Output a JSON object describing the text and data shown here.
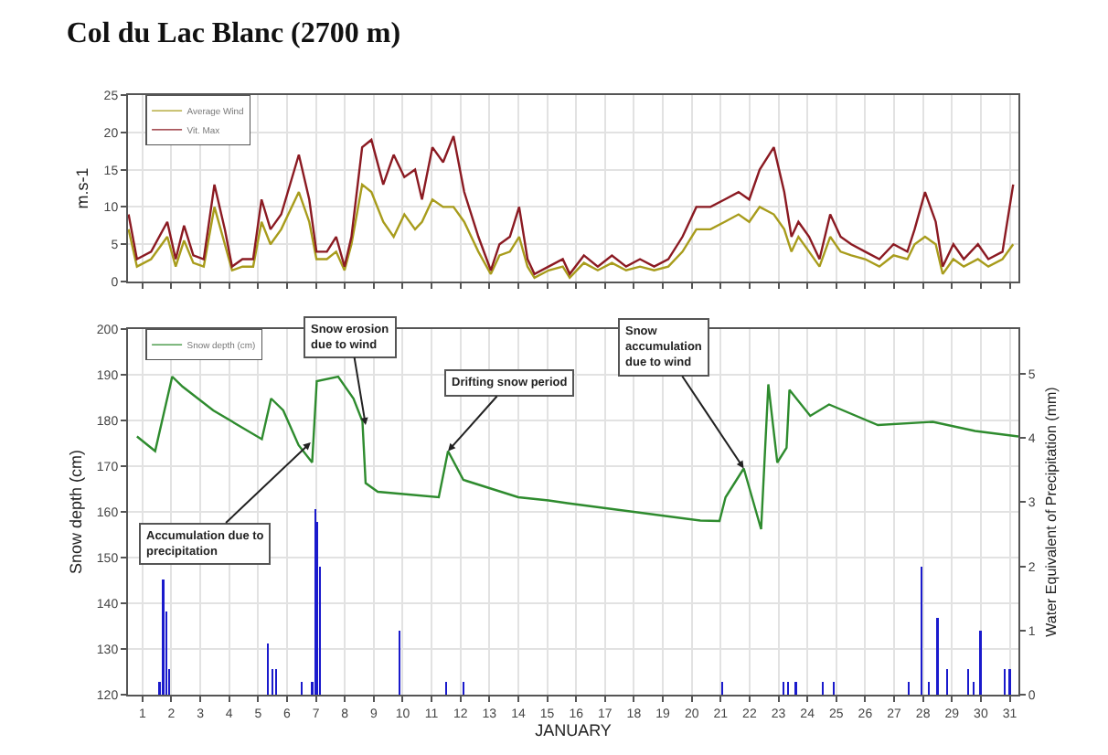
{
  "chart_data": [
    {
      "type": "line",
      "title": "Col du Lac Blanc (2700 m)",
      "ylabel": "m.s-1",
      "xlim": [
        0.5,
        31.3
      ],
      "xticks": [
        {
          "value": 1,
          "label": null
        },
        {
          "value": 2,
          "label": null
        },
        {
          "value": 3,
          "label": null
        },
        {
          "value": 4,
          "label": null
        },
        {
          "value": 5,
          "label": null
        },
        {
          "value": 6,
          "label": null
        },
        {
          "value": 7,
          "label": null
        },
        {
          "value": 8,
          "label": null
        },
        {
          "value": 9,
          "label": null
        },
        {
          "value": 10,
          "label": null
        },
        {
          "value": 11,
          "label": null
        },
        {
          "value": 12,
          "label": null
        },
        {
          "value": 13,
          "label": null
        },
        {
          "value": 14,
          "label": null
        },
        {
          "value": 15,
          "label": null
        },
        {
          "value": 16,
          "label": null
        },
        {
          "value": 17,
          "label": null
        },
        {
          "value": 18,
          "label": null
        },
        {
          "value": 19,
          "label": null
        },
        {
          "value": 20,
          "label": null
        },
        {
          "value": 21,
          "label": null
        },
        {
          "value": 22,
          "label": null
        },
        {
          "value": 23,
          "label": null
        },
        {
          "value": 24,
          "label": null
        },
        {
          "value": 25,
          "label": null
        },
        {
          "value": 26,
          "label": null
        },
        {
          "value": 27,
          "label": null
        },
        {
          "value": 28,
          "label": null
        },
        {
          "value": 29,
          "label": null
        },
        {
          "value": 30,
          "label": null
        },
        {
          "value": 31,
          "label": null
        }
      ],
      "ylim": [
        0,
        25
      ],
      "yticks": [
        0,
        5,
        10,
        15,
        20,
        25
      ],
      "grid": true,
      "legend": "top left",
      "tick_labels": "y",
      "x": [
        0.52,
        0.81,
        1.3,
        1.86,
        2.15,
        2.44,
        2.76,
        3.12,
        3.49,
        3.85,
        4.1,
        4.46,
        4.83,
        5.12,
        5.43,
        5.8,
        6.41,
        6.77,
        7.02,
        7.38,
        7.7,
        7.99,
        8.23,
        8.6,
        8.92,
        9.33,
        9.69,
        10.06,
        10.43,
        10.67,
        11.03,
        11.4,
        11.76,
        12.13,
        12.62,
        13.05,
        13.35,
        13.71,
        14.03,
        14.32,
        14.56,
        15.05,
        15.54,
        15.78,
        16.27,
        16.75,
        17.24,
        17.73,
        18.21,
        18.7,
        19.19,
        19.68,
        20.16,
        20.65,
        21.14,
        21.62,
        21.99,
        22.35,
        22.84,
        23.2,
        23.45,
        23.69,
        24.06,
        24.42,
        24.79,
        25.15,
        25.52,
        26.0,
        26.49,
        26.98,
        27.46,
        27.71,
        28.07,
        28.44,
        28.68,
        29.05,
        29.41,
        29.9,
        30.26,
        30.75,
        31.12
      ],
      "series": [
        {
          "name": "Average Wind",
          "color": "#a89c1c",
          "values": [
            7,
            2,
            3,
            6,
            2,
            5.5,
            2.5,
            2,
            10,
            5,
            1.5,
            2,
            2,
            8,
            5,
            7,
            12,
            8,
            3,
            3,
            4,
            1.5,
            5,
            13,
            12,
            8,
            6,
            9,
            7,
            8,
            11,
            10,
            10,
            8,
            4,
            1,
            3.5,
            4,
            6,
            2,
            0.5,
            1.5,
            2,
            0.5,
            2.5,
            1.5,
            2.5,
            1.5,
            2,
            1.5,
            2,
            4,
            7,
            7,
            8,
            9,
            8,
            10,
            9,
            7,
            4,
            6,
            4,
            2,
            6,
            4,
            3.5,
            3,
            2,
            3.5,
            3,
            5,
            6,
            5,
            1,
            3,
            2,
            3,
            2,
            3,
            5
          ]
        },
        {
          "name": "Vit. Max",
          "color": "#8b1a22",
          "values": [
            9,
            3,
            4,
            8,
            3,
            7.5,
            3.5,
            3,
            13,
            7,
            2,
            3,
            3,
            11,
            7,
            9,
            17,
            11,
            4,
            4,
            6,
            2,
            6,
            18,
            19,
            13,
            17,
            14,
            15,
            11,
            18,
            16,
            19.5,
            12,
            6,
            1.5,
            5,
            6,
            10,
            3,
            1,
            2,
            3,
            1,
            3.5,
            2,
            3.5,
            2,
            3,
            2,
            3,
            6,
            10,
            10,
            11,
            12,
            11,
            15,
            18,
            12,
            6,
            8,
            6,
            3,
            9,
            6,
            5,
            4,
            3,
            5,
            4,
            7,
            12,
            8,
            2,
            5,
            3,
            5,
            3,
            4,
            13
          ]
        }
      ]
    },
    {
      "type": "line",
      "xlabel": "JANUARY",
      "ylabel": "Snow depth (cm)",
      "y2label": "Water Equivalent of Precipitation (mm)",
      "xlim": [
        0.5,
        31.3
      ],
      "xticks": [
        1,
        2,
        3,
        4,
        5,
        6,
        7,
        8,
        9,
        10,
        11,
        12,
        13,
        14,
        15,
        16,
        17,
        18,
        19,
        20,
        21,
        22,
        23,
        24,
        25,
        26,
        27,
        28,
        29,
        30,
        31
      ],
      "ylim": [
        120,
        200
      ],
      "yticks": [
        120,
        130,
        140,
        150,
        160,
        170,
        180,
        190,
        200
      ],
      "y2lim": [
        0,
        5.7
      ],
      "y2ticks": [
        0,
        1,
        2,
        3,
        4,
        5
      ],
      "grid": true,
      "legend": "top left",
      "annotations": [
        {
          "text": "Accumulation due to\nprecipitation",
          "x": 6.82,
          "y": 175.2
        },
        {
          "text": "Snow erosion\ndue to wind",
          "x": 8.72,
          "y": 179
        },
        {
          "text": "Drifting snow period",
          "x": 11.57,
          "y": 173.3
        },
        {
          "text": "Snow\naccumulation\ndue to wind",
          "x": 21.8,
          "y": 169.5
        }
      ],
      "series": [
        {
          "name": "Snow depth (cm)",
          "color": "#2e8b2e",
          "x": [
            0.81,
            1.44,
            2.03,
            2.39,
            3.45,
            5.13,
            5.45,
            5.87,
            6.4,
            6.87,
            7.03,
            7.77,
            8.3,
            8.61,
            8.72,
            9.14,
            11.25,
            11.57,
            12.1,
            14,
            15.05,
            15.7,
            20.3,
            20.96,
            21.17,
            21.8,
            22.4,
            22.65,
            22.96,
            23.28,
            23.38,
            24.1,
            24.75,
            26.44,
            28.34,
            29.8,
            31.3
          ],
          "values": [
            176.5,
            173.3,
            189.6,
            187.4,
            182.2,
            175.9,
            184.8,
            182.2,
            174.6,
            170.8,
            188.6,
            189.6,
            184.8,
            179.8,
            166.3,
            164.4,
            163.2,
            173.3,
            167,
            163.2,
            162.5,
            161.9,
            158.1,
            158,
            163.2,
            169.5,
            156.2,
            187.9,
            170.8,
            174,
            186.7,
            181,
            183.5,
            179,
            179.7,
            177.7,
            176.5
          ]
        },
        {
          "type": "bar",
          "axis": "y2",
          "color": "#1a1acc",
          "x": [
            1.59,
            1.72,
            1.82,
            1.93,
            5.35,
            5.5,
            5.62,
            6.5,
            6.87,
            6.97,
            7.05,
            7.13,
            9.88,
            11.5,
            12.1,
            21.06,
            23.17,
            23.34,
            23.6,
            24.54,
            24.9,
            27.5,
            27.96,
            28.2,
            28.5,
            28.84,
            29.56,
            29.75,
            29.99,
            30.83,
            31.0
          ],
          "values": [
            0.2,
            1.8,
            1.3,
            0.4,
            0.8,
            0.4,
            0.4,
            0.2,
            0.2,
            2.9,
            2.7,
            2,
            1,
            0.2,
            0.2,
            0.2,
            0.2,
            0.2,
            0.2,
            0.2,
            0.2,
            0.2,
            2,
            0.2,
            1.2,
            0.4,
            0.4,
            0.2,
            1,
            0.4,
            0.4
          ]
        }
      ]
    }
  ]
}
